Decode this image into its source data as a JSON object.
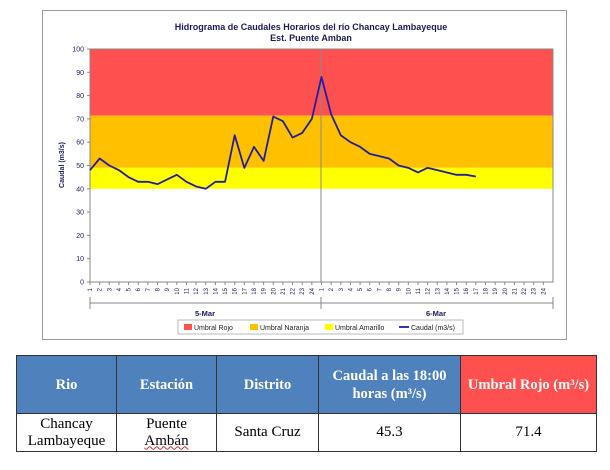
{
  "chart_data": {
    "type": "line",
    "title": "Hidrograma de Caudales Horarios del río Chancay Lambayeque",
    "subtitle": "Est. Puente Amban",
    "ylabel": "Caudal  (m3/s)",
    "xlabel": "",
    "ylim": [
      0,
      100
    ],
    "yticks": [
      0,
      10,
      20,
      30,
      40,
      50,
      60,
      70,
      80,
      90,
      100
    ],
    "x_tick_labels": [
      "1",
      "2",
      "3",
      "4",
      "5",
      "6",
      "7",
      "8",
      "9",
      "10",
      "11",
      "12",
      "13",
      "14",
      "15",
      "16",
      "17",
      "18",
      "19",
      "20",
      "21",
      "22",
      "23",
      "24",
      "1",
      "2",
      "3",
      "4",
      "5",
      "6",
      "7",
      "8",
      "9",
      "10",
      "11",
      "12",
      "13",
      "14",
      "15",
      "16",
      "17",
      "18",
      "19",
      "20",
      "21",
      "22",
      "23",
      "24"
    ],
    "day_labels": [
      "5-Mar",
      "6-Mar"
    ],
    "grid": false,
    "legend_position": "bottom",
    "thresholds": [
      {
        "name": "Umbral Rojo",
        "from": 71.4,
        "to": 100,
        "color": "#ff5050"
      },
      {
        "name": "Umbral Naranja",
        "from": 49,
        "to": 71.4,
        "color": "#ffc000"
      },
      {
        "name": "Umbral Amarillo",
        "from": 40,
        "to": 49,
        "color": "#ffff00"
      }
    ],
    "series": [
      {
        "name": "Caudal (m3/s)",
        "color": "#1f1fa0",
        "values": [
          48,
          53,
          50,
          48,
          45,
          43,
          43,
          42,
          44,
          46,
          43,
          41,
          40,
          43,
          43,
          63,
          49,
          58,
          52,
          71,
          69,
          62,
          64,
          70,
          88,
          72,
          63,
          60,
          58,
          55,
          54,
          53,
          50,
          49,
          47,
          49,
          48,
          47,
          46,
          46,
          45.3
        ]
      }
    ]
  },
  "table": {
    "headers": [
      "Rio",
      "Estación",
      "Distrito",
      "Caudal a las 18:00 horas (m³/s)",
      "Umbral Rojo (m³/s)"
    ],
    "row": {
      "rio": "Chancay Lambayeque",
      "estacion_1": "Puente",
      "estacion_2": "Ambán",
      "distrito": "Santa Cruz",
      "caudal": "45.3",
      "umbral": "71.4"
    }
  }
}
